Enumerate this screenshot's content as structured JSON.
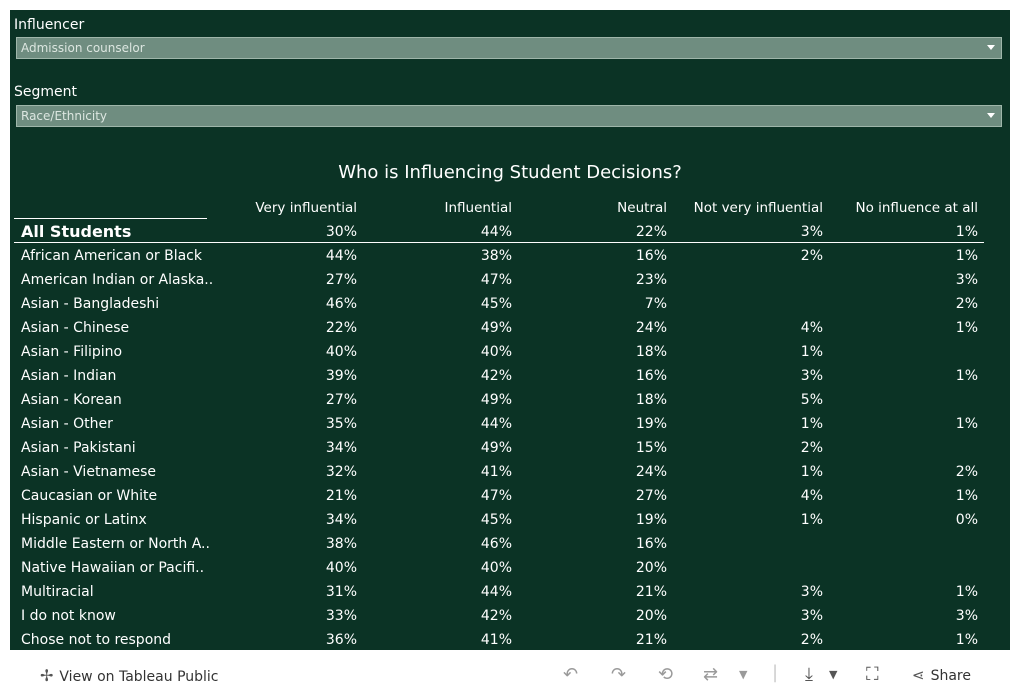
{
  "filters": {
    "influencer": {
      "label": "Influencer",
      "value": "Admission counselor"
    },
    "segment": {
      "label": "Segment",
      "value": "Race/Ethnicity"
    }
  },
  "title": "Who is Influencing Student Decisions?",
  "columns": [
    "Very influential",
    "Influential",
    "Neutral",
    "Not very influential",
    "No influence at all"
  ],
  "all_students": {
    "label": "All Students",
    "values": [
      "30%",
      "44%",
      "22%",
      "3%",
      "1%"
    ]
  },
  "rows": [
    {
      "label": "African American or Black",
      "values": [
        "44%",
        "38%",
        "16%",
        "2%",
        "1%"
      ]
    },
    {
      "label": "American Indian or Alaska..",
      "values": [
        "27%",
        "47%",
        "23%",
        "",
        "3%"
      ]
    },
    {
      "label": "Asian - Bangladeshi",
      "values": [
        "46%",
        "45%",
        "7%",
        "",
        "2%"
      ]
    },
    {
      "label": "Asian - Chinese",
      "values": [
        "22%",
        "49%",
        "24%",
        "4%",
        "1%"
      ]
    },
    {
      "label": "Asian - Filipino",
      "values": [
        "40%",
        "40%",
        "18%",
        "1%",
        ""
      ]
    },
    {
      "label": "Asian - Indian",
      "values": [
        "39%",
        "42%",
        "16%",
        "3%",
        "1%"
      ]
    },
    {
      "label": "Asian - Korean",
      "values": [
        "27%",
        "49%",
        "18%",
        "5%",
        ""
      ]
    },
    {
      "label": "Asian - Other",
      "values": [
        "35%",
        "44%",
        "19%",
        "1%",
        "1%"
      ]
    },
    {
      "label": "Asian - Pakistani",
      "values": [
        "34%",
        "49%",
        "15%",
        "2%",
        ""
      ]
    },
    {
      "label": "Asian - Vietnamese",
      "values": [
        "32%",
        "41%",
        "24%",
        "1%",
        "2%"
      ]
    },
    {
      "label": "Caucasian or White",
      "values": [
        "21%",
        "47%",
        "27%",
        "4%",
        "1%"
      ]
    },
    {
      "label": "Hispanic or Latinx",
      "values": [
        "34%",
        "45%",
        "19%",
        "1%",
        "0%"
      ]
    },
    {
      "label": "Middle Eastern or North A..",
      "values": [
        "38%",
        "46%",
        "16%",
        "",
        ""
      ]
    },
    {
      "label": "Native Hawaiian or Pacifi..",
      "values": [
        "40%",
        "40%",
        "20%",
        "",
        ""
      ]
    },
    {
      "label": "Multiracial",
      "values": [
        "31%",
        "44%",
        "21%",
        "3%",
        "1%"
      ]
    },
    {
      "label": "I do not know",
      "values": [
        "33%",
        "42%",
        "20%",
        "3%",
        "3%"
      ]
    },
    {
      "label": "Chose not to respond",
      "values": [
        "36%",
        "41%",
        "21%",
        "2%",
        "1%"
      ]
    }
  ],
  "footer": {
    "view_label": "View on Tableau Public",
    "share_label": "Share",
    "icons": [
      "tableau-logo-icon",
      "undo-icon",
      "redo-icon",
      "revert-icon",
      "refresh-icon",
      "download-icon",
      "fullscreen-icon",
      "share-icon"
    ]
  }
}
